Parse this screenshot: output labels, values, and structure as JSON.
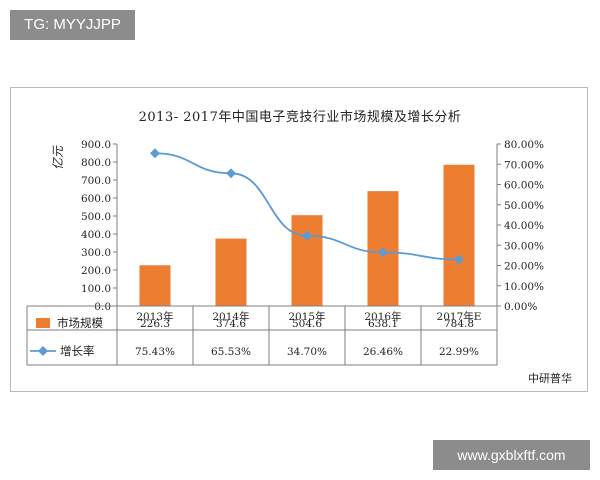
{
  "tag_text": "TG: MYYJJPP",
  "watermark_text": "www.gxblxftf.com",
  "source_text": "中研普华",
  "chart_data": {
    "type": "bar+line",
    "title": "2013- 2017年中国电子竞技行业市场规模及增长分析",
    "ylabel": "亿元",
    "categories": [
      "2013年",
      "2014年",
      "2015年",
      "2016年",
      "2017年E"
    ],
    "ylim": [
      0,
      900
    ],
    "y_ticks": [
      "0.0",
      "100.0",
      "200.0",
      "300.0",
      "400.0",
      "500.0",
      "600.0",
      "700.0",
      "800.0",
      "900.0"
    ],
    "y2lim": [
      0,
      80
    ],
    "y2_ticks": [
      "0.00%",
      "10.00%",
      "20.00%",
      "30.00%",
      "40.00%",
      "50.00%",
      "60.00%",
      "70.00%",
      "80.00%"
    ],
    "grid": false,
    "series": [
      {
        "name": "市场规模",
        "kind": "bar",
        "axis": "left",
        "color": "#ed7d31",
        "values": [
          226.3,
          374.6,
          504.6,
          638.1,
          784.8
        ],
        "labels": [
          "226.3",
          "374.6",
          "504.6",
          "638.1",
          "784.8"
        ]
      },
      {
        "name": "增长率",
        "kind": "line",
        "axis": "right",
        "color": "#5b9bd5",
        "values": [
          75.43,
          65.53,
          34.7,
          26.46,
          22.99
        ],
        "labels": [
          "75.43%",
          "65.53%",
          "34.70%",
          "26.46%",
          "22.99%"
        ]
      }
    ]
  }
}
